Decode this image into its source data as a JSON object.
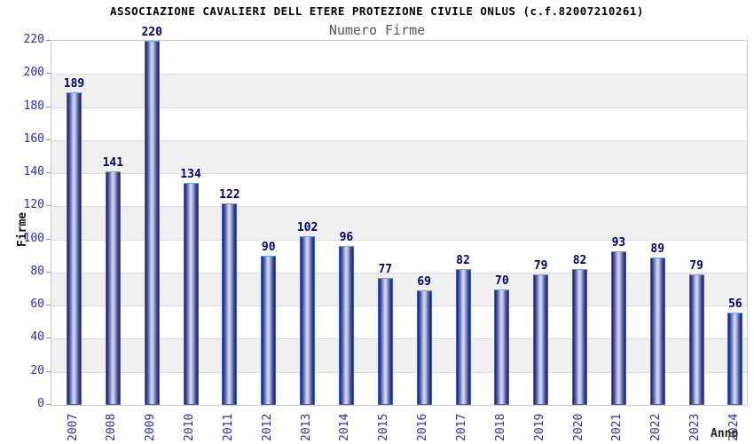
{
  "header": {
    "title": "ASSOCIAZIONE CAVALIERI DELL ETERE PROTEZIONE CIVILE ONLUS (c.f.82007210261)",
    "subtitle": "Numero Firme"
  },
  "axes": {
    "y_label": "Firme",
    "x_label": "Anno"
  },
  "chart_data": {
    "type": "bar",
    "title": "ASSOCIAZIONE CAVALIERI DELL ETERE PROTEZIONE CIVILE ONLUS (c.f.82007210261)",
    "subtitle": "Numero Firme",
    "xlabel": "Anno",
    "ylabel": "Firme",
    "categories": [
      "2007",
      "2008",
      "2009",
      "2010",
      "2011",
      "2012",
      "2013",
      "2014",
      "2015",
      "2016",
      "2017",
      "2018",
      "2019",
      "2020",
      "2021",
      "2022",
      "2023",
      "2024"
    ],
    "values": [
      189,
      141,
      220,
      134,
      122,
      90,
      102,
      96,
      77,
      69,
      82,
      70,
      79,
      82,
      93,
      89,
      79,
      56
    ],
    "ylim": [
      0,
      220
    ],
    "ytick_step": 20,
    "grid": true,
    "band_fill": "alternating horizontal bands",
    "legend": "none",
    "colors": {
      "bar_edge_dark": "#1d1d72",
      "bar_center_light": "#d9def4",
      "bar_outline": "#3565d8",
      "axis_tick_text": "#2828cc",
      "value_label_text": "#00006e",
      "band_gray": "#f0f0f0",
      "grid_line": "#dddddd",
      "title_text": "#000000",
      "subtitle_text": "#555555"
    }
  }
}
